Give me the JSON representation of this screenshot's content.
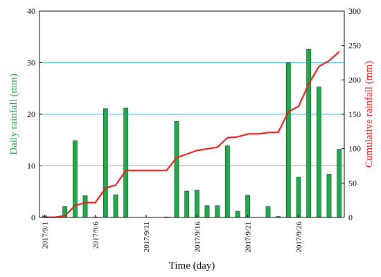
{
  "chart_data": {
    "type": "bar",
    "xlabel": "Time (day)",
    "ylabel_left": "Daily rainfall (mm)",
    "ylabel_right": "Cumulative rainfall (mm)",
    "ylim_left": [
      0,
      40
    ],
    "ylim_right": [
      0,
      300
    ],
    "yticks_left": [
      "0",
      "10",
      "20",
      "30",
      "40"
    ],
    "yticks_right": [
      "0",
      "50",
      "100",
      "150",
      "200",
      "250",
      "300"
    ],
    "xtick_labels": [
      "2017/9/1",
      "2017/9/6",
      "2017/9/11",
      "2017/9/16",
      "2017/9/21",
      "2017/9/26"
    ],
    "grid": "horizontal",
    "colors": {
      "bar_fill": "#1faa4e",
      "bar_edge": "#0d3d1c",
      "line": "#e8211a",
      "grid": "#49c2e8",
      "left_axis_title": "#1fa84a",
      "right_axis_title": "#e8211a"
    },
    "series": [
      {
        "type": "bar",
        "axis": "left",
        "x": [
          "2017/9/1",
          "2017/9/2",
          "2017/9/3",
          "2017/9/4",
          "2017/9/5",
          "2017/9/6",
          "2017/9/7",
          "2017/9/8",
          "2017/9/9",
          "2017/9/10",
          "2017/9/11",
          "2017/9/12",
          "2017/9/13",
          "2017/9/14",
          "2017/9/15",
          "2017/9/16",
          "2017/9/17",
          "2017/9/18",
          "2017/9/19",
          "2017/9/20",
          "2017/9/21",
          "2017/9/22",
          "2017/9/23",
          "2017/9/24",
          "2017/9/25",
          "2017/9/26",
          "2017/9/27",
          "2017/9/28",
          "2017/9/29",
          "2017/9/30"
        ],
        "values": [
          0.3,
          0,
          2.1,
          14.9,
          4.2,
          0.1,
          21.1,
          4.4,
          21.2,
          0,
          0,
          0,
          0.1,
          18.6,
          5.1,
          5.3,
          2.3,
          2.3,
          13.9,
          1.2,
          4.3,
          0,
          2.1,
          0.2,
          30.0,
          7.8,
          32.6,
          25.3,
          8.4,
          13.2
        ]
      },
      {
        "type": "line",
        "axis": "right",
        "x": [
          "2017/9/1",
          "2017/9/2",
          "2017/9/3",
          "2017/9/4",
          "2017/9/5",
          "2017/9/6",
          "2017/9/7",
          "2017/9/8",
          "2017/9/9",
          "2017/9/10",
          "2017/9/11",
          "2017/9/12",
          "2017/9/13",
          "2017/9/14",
          "2017/9/15",
          "2017/9/16",
          "2017/9/17",
          "2017/9/18",
          "2017/9/19",
          "2017/9/20",
          "2017/9/21",
          "2017/9/22",
          "2017/9/23",
          "2017/9/24",
          "2017/9/25",
          "2017/9/26",
          "2017/9/27",
          "2017/9/28",
          "2017/9/29",
          "2017/9/30"
        ],
        "values": [
          0.3,
          0.3,
          2.4,
          17.3,
          21.5,
          21.6,
          42.7,
          47.1,
          68.3,
          68.3,
          68.3,
          68.3,
          68.4,
          87.0,
          92.1,
          97.4,
          99.7,
          102.0,
          115.9,
          117.1,
          121.4,
          121.4,
          123.5,
          123.7,
          153.7,
          161.5,
          194.1,
          219.4,
          227.8,
          241.0
        ]
      }
    ]
  }
}
